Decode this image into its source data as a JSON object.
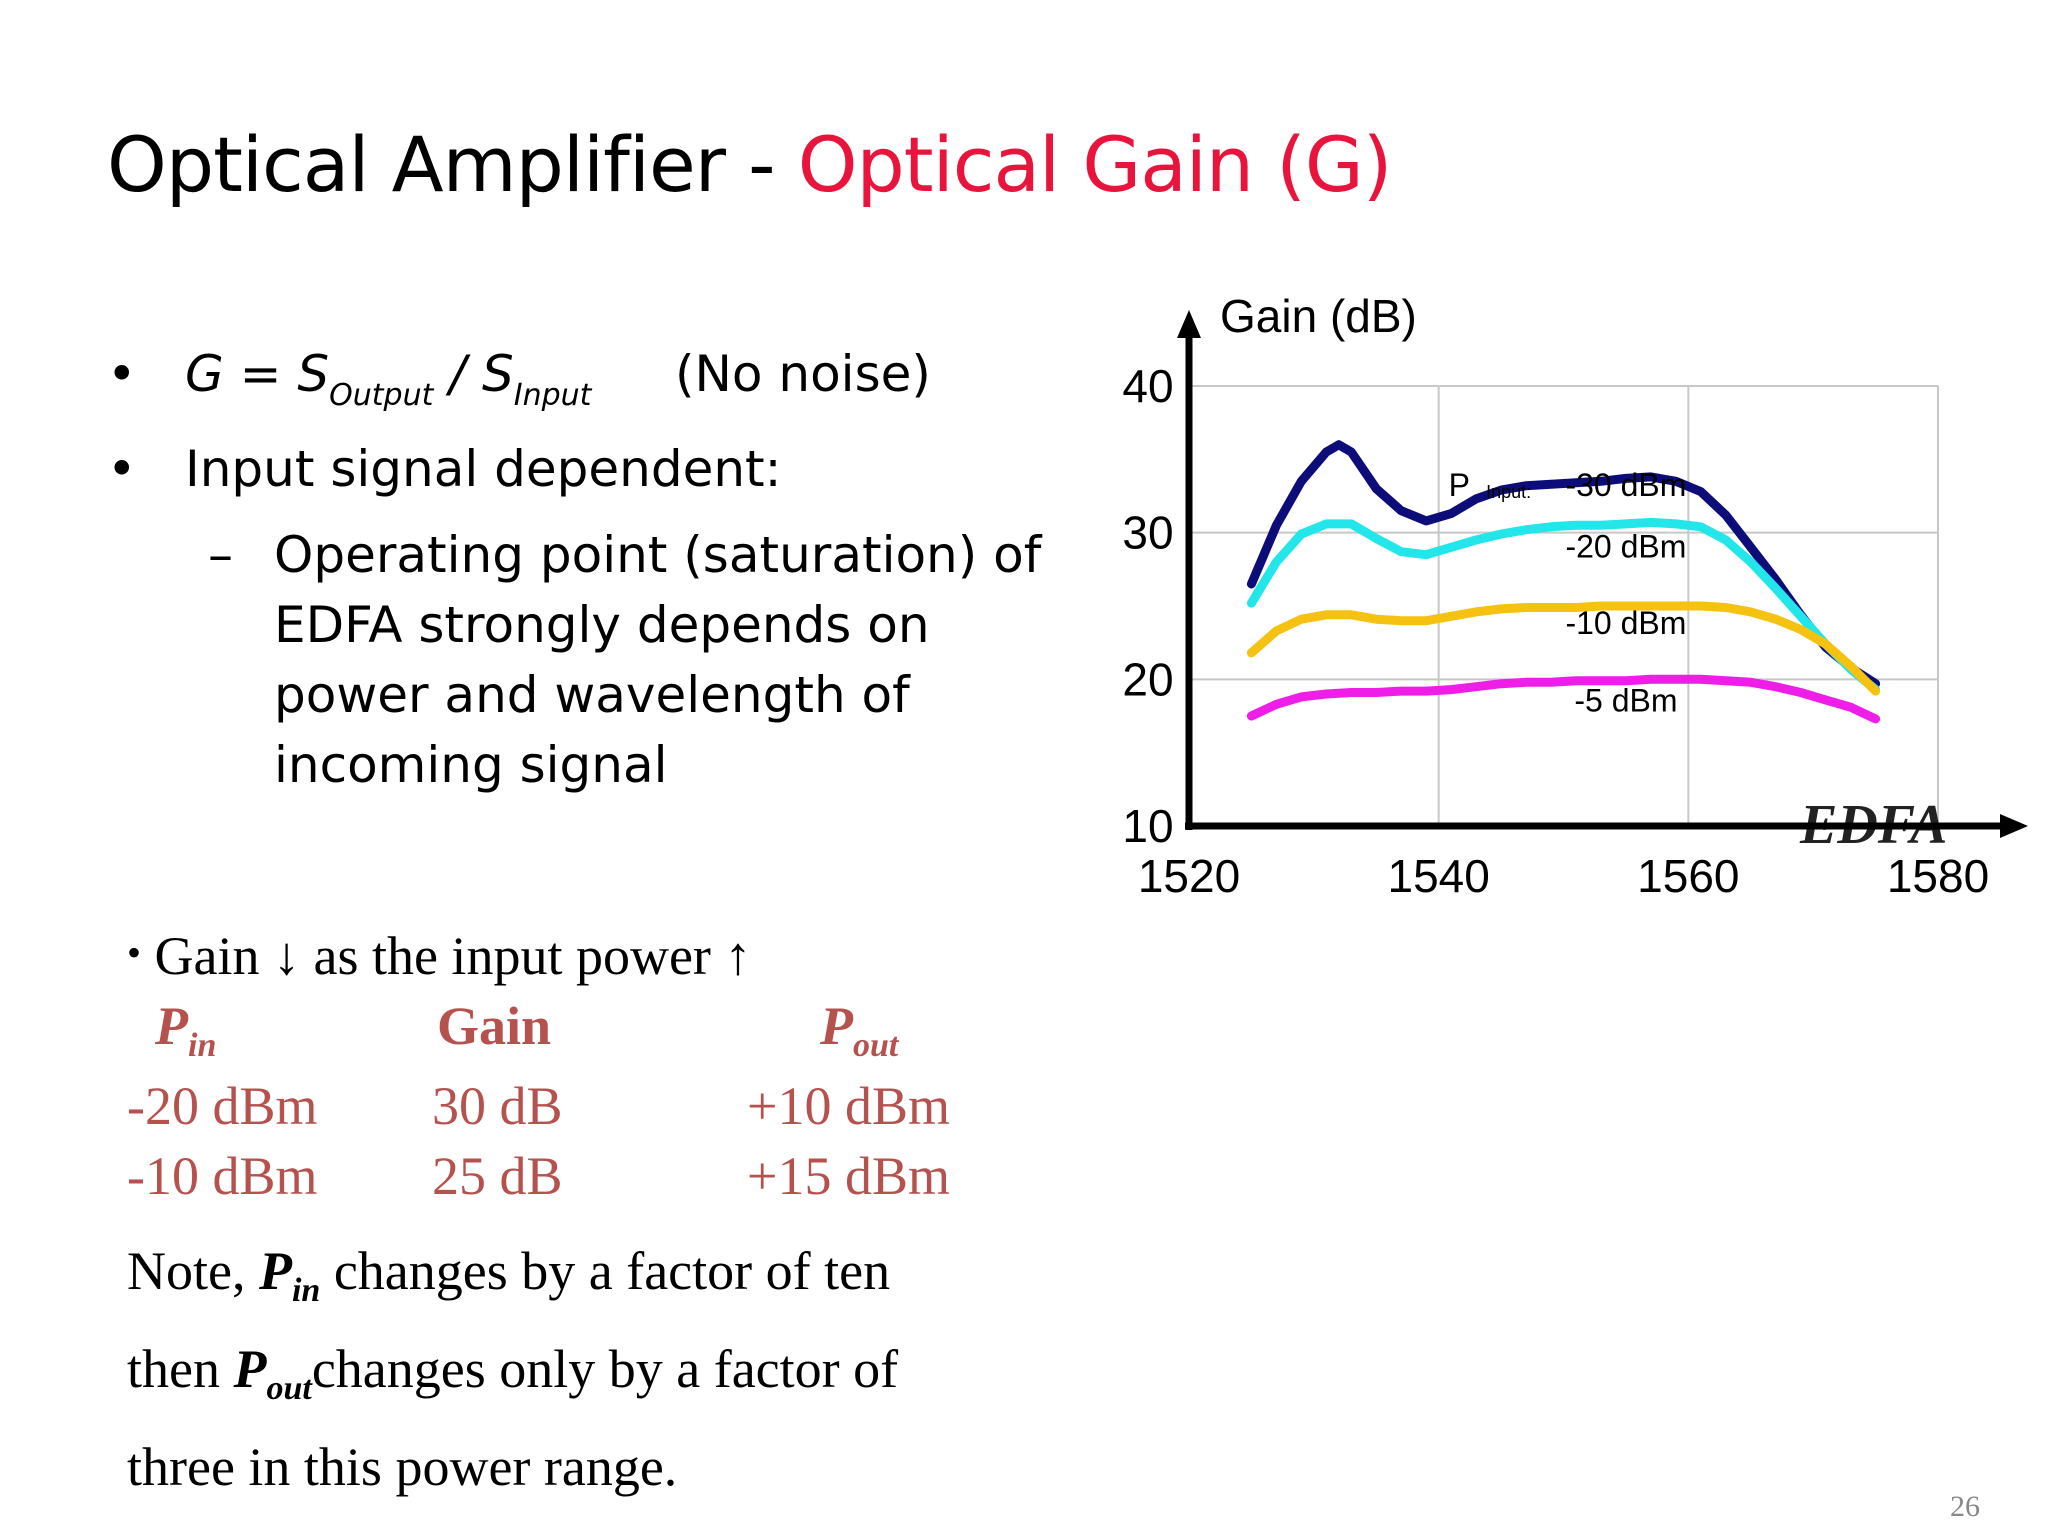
{
  "title": {
    "main": "Optical Amplifier - ",
    "highlight": "Optical Gain (G)"
  },
  "bullets": {
    "bullet_char": "•",
    "formula": {
      "g": "G = S",
      "output_sub": "Output",
      "slash": " / S",
      "input_sub": "Input",
      "note": "(No noise)"
    },
    "input_dependent": "Input signal dependent:",
    "sub": {
      "dash": "–",
      "lines": [
        "Operating point (saturation) of",
        "EDFA strongly depends on",
        "power and wavelength of",
        "incoming signal"
      ]
    }
  },
  "gain_note": {
    "bullet": "•",
    "text": "Gain ↓ as the input power ↑",
    "table": {
      "headers": {
        "pin": "P",
        "pin_sub": "in",
        "gain": "Gain",
        "pout": "P",
        "pout_sub": "out"
      },
      "rows": [
        {
          "pin": "-20 dBm",
          "gain": "30 dB",
          "pout": "+10 dBm"
        },
        {
          "pin": "-10 dBm",
          "gain": "25 dB",
          "pout": "+15 dBm"
        }
      ]
    },
    "note": {
      "l1a": "Note, ",
      "l1p": "P",
      "l1sub": "in",
      "l1b": " changes by a factor of ten",
      "l2a": "then ",
      "l2p": "P",
      "l2sub": "out",
      "l2b": "changes only by a factor of",
      "l3": "three in this power range."
    }
  },
  "page_number": "26",
  "chart_data": {
    "type": "line",
    "ylabel": "Gain (dB)",
    "watermark": "EDFA",
    "xlim": [
      1520,
      1580
    ],
    "ylim": [
      10,
      40
    ],
    "xticks": [
      "1520",
      "1540",
      "1560",
      "1580"
    ],
    "yticks": [
      "10",
      "20",
      "30",
      "40"
    ],
    "grid": true,
    "annotation_prefix": "P",
    "annotation_sub": "Input:",
    "series": [
      {
        "name": "-30 dBm",
        "color": "#0d0d7a",
        "x": [
          1525,
          1527,
          1529,
          1531,
          1532,
          1533,
          1535,
          1537,
          1539,
          1541,
          1543,
          1545,
          1547,
          1549,
          1551,
          1553,
          1555,
          1557,
          1559,
          1561,
          1563,
          1565,
          1567,
          1569,
          1571,
          1573,
          1575
        ],
        "y": [
          26.5,
          30.5,
          33.5,
          35.5,
          36,
          35.5,
          33,
          31.5,
          30.8,
          31.3,
          32.3,
          32.9,
          33.2,
          33.3,
          33.4,
          33.5,
          33.7,
          33.8,
          33.5,
          32.8,
          31.2,
          29,
          26.8,
          24.4,
          22.2,
          20.8,
          19.7
        ]
      },
      {
        "name": "-20 dBm",
        "color": "#22e6ea",
        "x": [
          1525,
          1527,
          1529,
          1531,
          1533,
          1535,
          1537,
          1539,
          1541,
          1543,
          1545,
          1547,
          1549,
          1551,
          1553,
          1555,
          1557,
          1559,
          1561,
          1563,
          1565,
          1567,
          1569,
          1571,
          1573,
          1575
        ],
        "y": [
          25.2,
          28,
          29.9,
          30.6,
          30.6,
          29.6,
          28.7,
          28.5,
          29,
          29.5,
          29.9,
          30.2,
          30.4,
          30.5,
          30.5,
          30.6,
          30.7,
          30.6,
          30.4,
          29.5,
          28,
          26.2,
          24.3,
          22.4,
          20.7,
          19.3
        ]
      },
      {
        "name": "-10 dBm",
        "color": "#f5c211",
        "x": [
          1525,
          1527,
          1529,
          1531,
          1533,
          1535,
          1537,
          1539,
          1541,
          1543,
          1545,
          1547,
          1549,
          1551,
          1553,
          1555,
          1557,
          1559,
          1561,
          1563,
          1565,
          1567,
          1569,
          1571,
          1573,
          1575
        ],
        "y": [
          21.8,
          23.3,
          24.1,
          24.4,
          24.4,
          24.1,
          24,
          24,
          24.3,
          24.6,
          24.8,
          24.9,
          24.9,
          24.9,
          25,
          25,
          25,
          25,
          25,
          24.9,
          24.6,
          24.1,
          23.4,
          22.4,
          20.9,
          19.2
        ]
      },
      {
        "name": "-5 dBm",
        "color": "#ee1ee8",
        "x": [
          1525,
          1527,
          1529,
          1531,
          1533,
          1535,
          1537,
          1539,
          1541,
          1543,
          1545,
          1547,
          1549,
          1551,
          1553,
          1555,
          1557,
          1559,
          1561,
          1563,
          1565,
          1567,
          1569,
          1571,
          1573,
          1575
        ],
        "y": [
          17.5,
          18.3,
          18.8,
          19,
          19.1,
          19.1,
          19.2,
          19.2,
          19.3,
          19.5,
          19.7,
          19.8,
          19.8,
          19.9,
          19.9,
          19.9,
          20,
          20,
          20,
          19.9,
          19.8,
          19.5,
          19.1,
          18.6,
          18.1,
          17.3
        ]
      }
    ]
  }
}
